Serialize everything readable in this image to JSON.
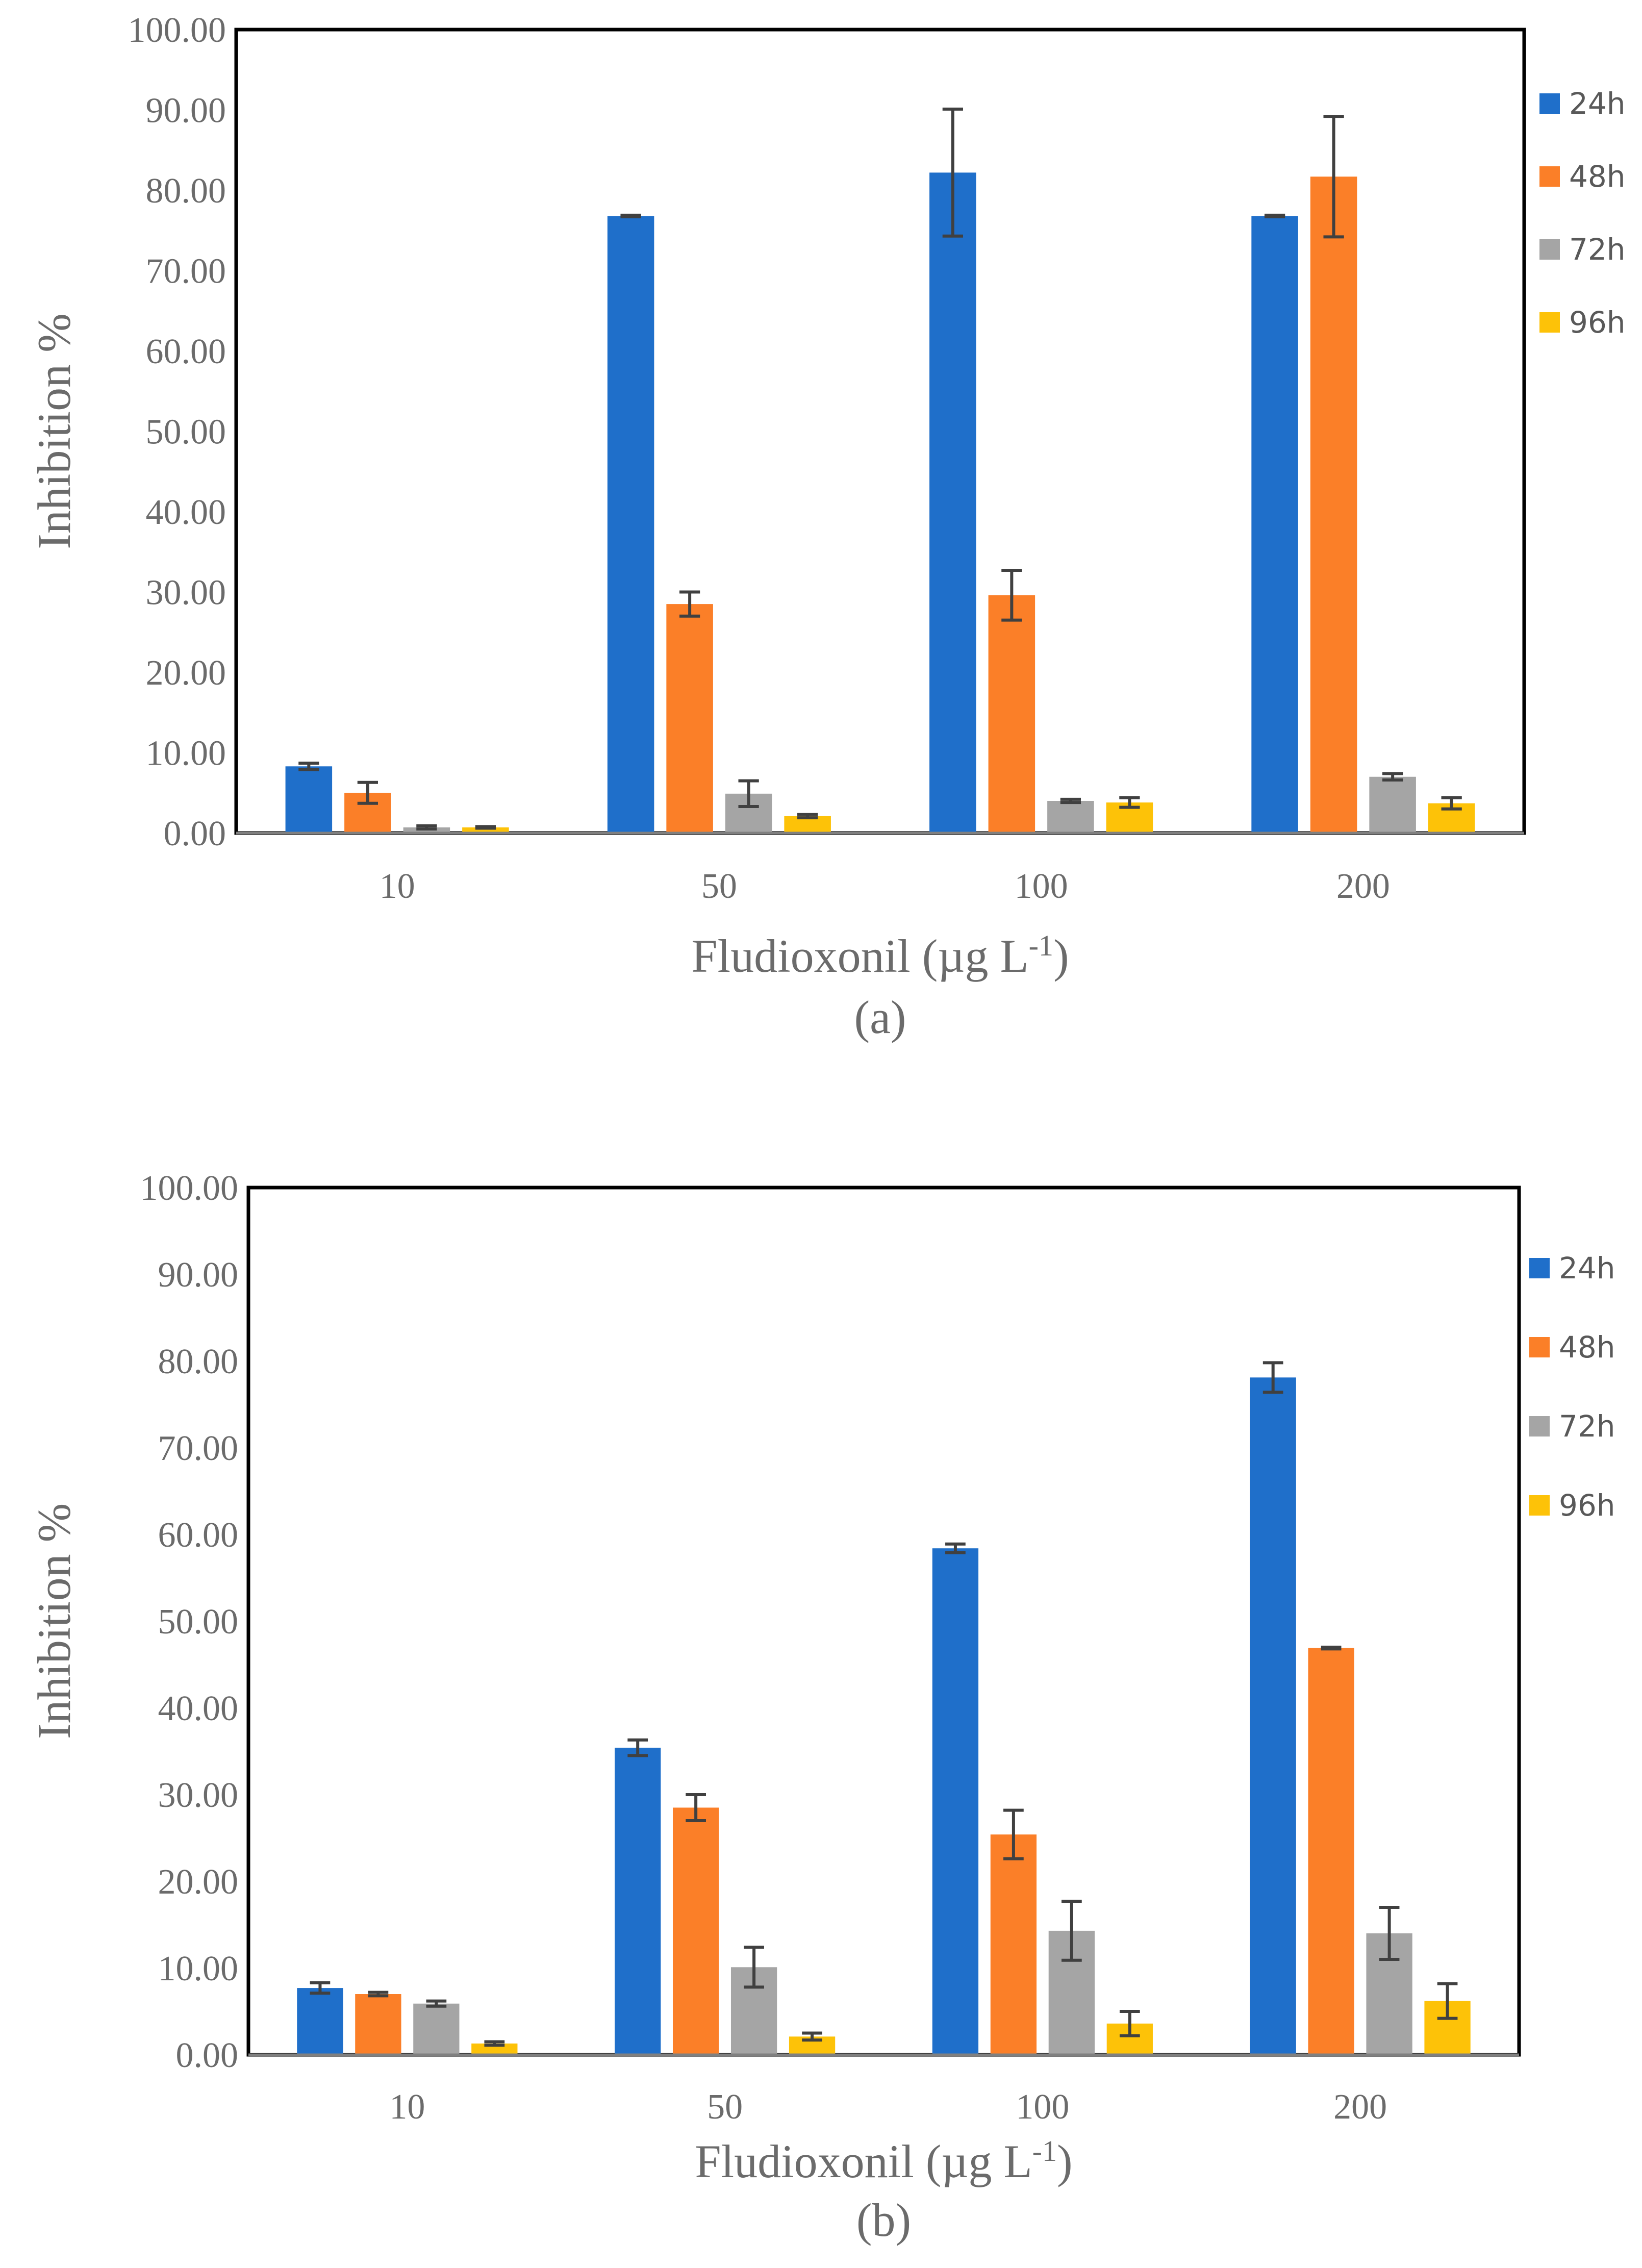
{
  "colors": {
    "24h": "#1f6fca",
    "48h": "#fb7f28",
    "72h": "#a5a5a5",
    "96h": "#fdc208",
    "axis": "#000000",
    "errorbar": "#404040"
  },
  "chart_data": [
    {
      "type": "bar",
      "panel": "(a)",
      "xlabel": "Fludioxonil (µg L",
      "xlabel_sup": "-1",
      "xlabel_end": ")",
      "ylabel": "Inhibition %",
      "ylim": [
        0,
        100
      ],
      "yticks": [
        "0.00",
        "10.00",
        "20.00",
        "30.00",
        "40.00",
        "50.00",
        "60.00",
        "70.00",
        "80.00",
        "90.00",
        "100.00"
      ],
      "categories": [
        "10",
        "50",
        "100",
        "200"
      ],
      "legend_position": "right",
      "series": [
        {
          "name": "24h",
          "values": [
            8.3,
            76.8,
            82.2,
            76.8
          ],
          "errors": [
            0.4,
            0.1,
            7.9,
            0.1
          ]
        },
        {
          "name": "48h",
          "values": [
            5.0,
            28.5,
            29.6,
            81.7
          ],
          "errors": [
            1.3,
            1.5,
            3.1,
            7.5
          ]
        },
        {
          "name": "72h",
          "values": [
            0.7,
            4.9,
            4.0,
            7.0
          ],
          "errors": [
            0.2,
            1.6,
            0.2,
            0.4
          ]
        },
        {
          "name": "96h",
          "values": [
            0.7,
            2.1,
            3.8,
            3.7
          ],
          "errors": [
            0.1,
            0.2,
            0.6,
            0.7
          ]
        }
      ]
    },
    {
      "type": "bar",
      "panel": "(b)",
      "xlabel": "Fludioxonil (µg L",
      "xlabel_sup": "-1",
      "xlabel_end": ")",
      "ylabel": "Inhibition %",
      "ylim": [
        0,
        100
      ],
      "yticks": [
        "0.00",
        "10.00",
        "20.00",
        "30.00",
        "40.00",
        "50.00",
        "60.00",
        "70.00",
        "80.00",
        "90.00",
        "100.00"
      ],
      "categories": [
        "10",
        "50",
        "100",
        "200"
      ],
      "legend_position": "right",
      "series": [
        {
          "name": "24h",
          "values": [
            7.7,
            35.4,
            58.4,
            78.1
          ],
          "errors": [
            0.6,
            0.9,
            0.5,
            1.7
          ]
        },
        {
          "name": "48h",
          "values": [
            7.0,
            28.5,
            25.4,
            46.9
          ],
          "errors": [
            0.2,
            1.5,
            2.8,
            0.1
          ]
        },
        {
          "name": "72h",
          "values": [
            5.9,
            10.1,
            14.3,
            14.0
          ],
          "errors": [
            0.3,
            2.3,
            3.4,
            3.0
          ]
        },
        {
          "name": "96h",
          "values": [
            1.3,
            2.1,
            3.6,
            6.2
          ],
          "errors": [
            0.2,
            0.4,
            1.4,
            2.0
          ]
        }
      ]
    }
  ]
}
